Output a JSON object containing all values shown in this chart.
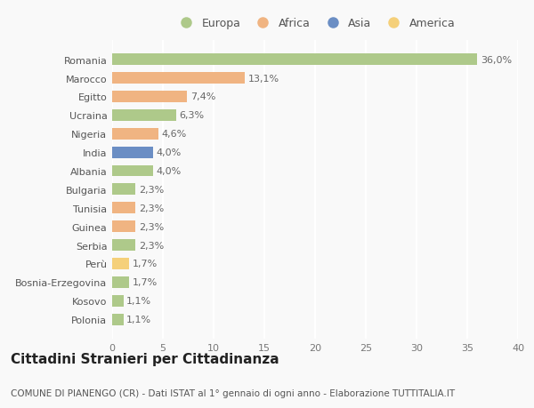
{
  "countries": [
    "Romania",
    "Marocco",
    "Egitto",
    "Ucraina",
    "Nigeria",
    "India",
    "Albania",
    "Bulgaria",
    "Tunisia",
    "Guinea",
    "Serbia",
    "Perù",
    "Bosnia-Erzegovina",
    "Kosovo",
    "Polonia"
  ],
  "values": [
    36.0,
    13.1,
    7.4,
    6.3,
    4.6,
    4.0,
    4.0,
    2.3,
    2.3,
    2.3,
    2.3,
    1.7,
    1.7,
    1.1,
    1.1
  ],
  "labels": [
    "36,0%",
    "13,1%",
    "7,4%",
    "6,3%",
    "4,6%",
    "4,0%",
    "4,0%",
    "2,3%",
    "2,3%",
    "2,3%",
    "2,3%",
    "1,7%",
    "1,7%",
    "1,1%",
    "1,1%"
  ],
  "continents": [
    "Europa",
    "Africa",
    "Africa",
    "Europa",
    "Africa",
    "Asia",
    "Europa",
    "Europa",
    "Africa",
    "Africa",
    "Europa",
    "America",
    "Europa",
    "Europa",
    "Europa"
  ],
  "colors": {
    "Europa": "#aec98a",
    "Africa": "#f0b482",
    "Asia": "#6b8ec4",
    "America": "#f5d07a"
  },
  "legend_order": [
    "Europa",
    "Africa",
    "Asia",
    "America"
  ],
  "title": "Cittadini Stranieri per Cittadinanza",
  "subtitle": "COMUNE DI PIANENGO (CR) - Dati ISTAT al 1° gennaio di ogni anno - Elaborazione TUTTITALIA.IT",
  "xlim": [
    0,
    40
  ],
  "xticks": [
    0,
    5,
    10,
    15,
    20,
    25,
    30,
    35,
    40
  ],
  "background_color": "#f9f9f9",
  "grid_color": "#ffffff",
  "bar_height": 0.62,
  "label_fontsize": 8,
  "tick_fontsize": 8,
  "title_fontsize": 11,
  "subtitle_fontsize": 7.5
}
